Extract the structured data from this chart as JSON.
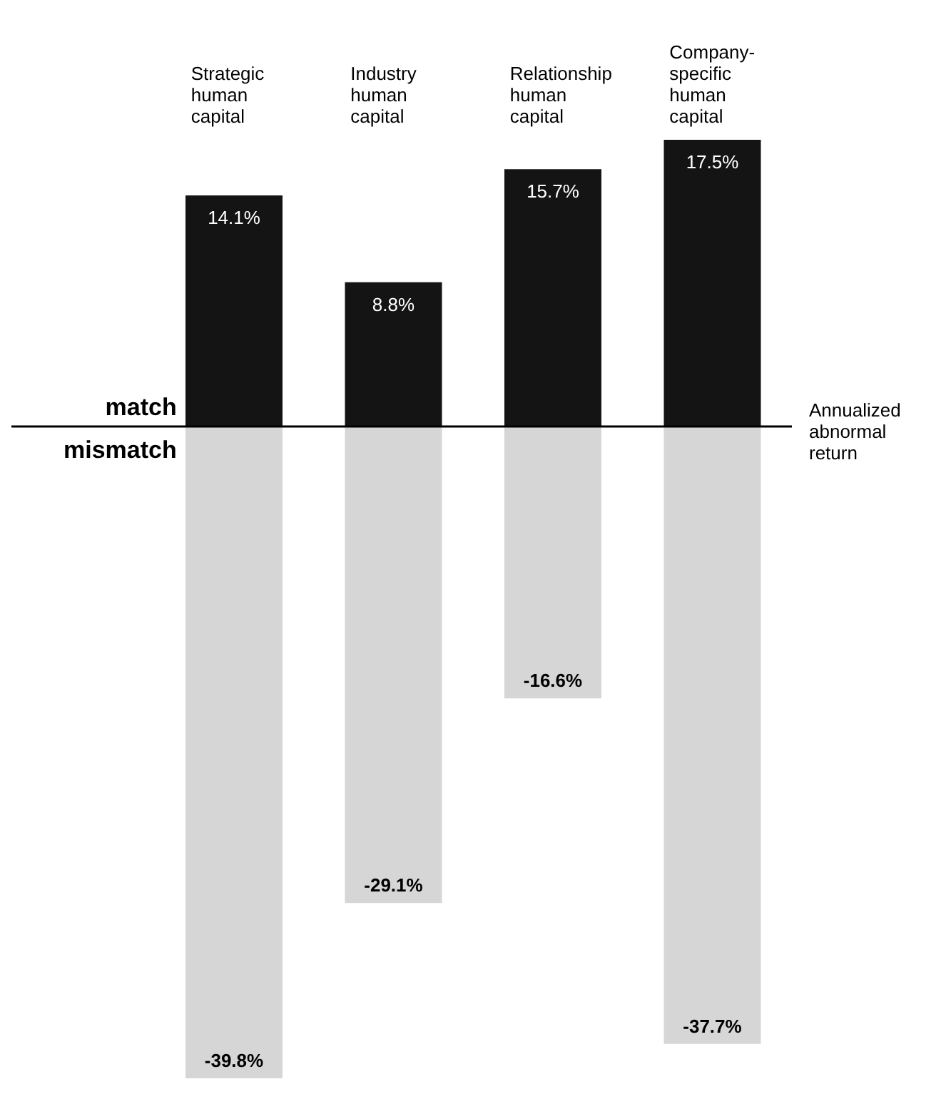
{
  "chart_data": {
    "type": "bar",
    "stacked": true,
    "ylabel": "Annualized abnormal return",
    "categories": [
      "Strategic human capital",
      "Industry human capital",
      "Relationship human capital",
      "Company-specific human capital"
    ],
    "series": [
      {
        "name": "match",
        "color": "#141414",
        "values": [
          14.1,
          8.8,
          15.7,
          17.5
        ],
        "value_labels": [
          "14.1%",
          "8.8%",
          "15.7%",
          "17.5%"
        ]
      },
      {
        "name": "mismatch",
        "color": "#d6d6d6",
        "values": [
          -39.8,
          -29.1,
          -16.6,
          -37.7
        ],
        "value_labels": [
          "-39.8%",
          "-29.1%",
          "-16.6%",
          "-37.7%"
        ]
      }
    ],
    "ref_lines": [
      {
        "axis": "y",
        "value": 0,
        "color": "#000000"
      }
    ]
  }
}
